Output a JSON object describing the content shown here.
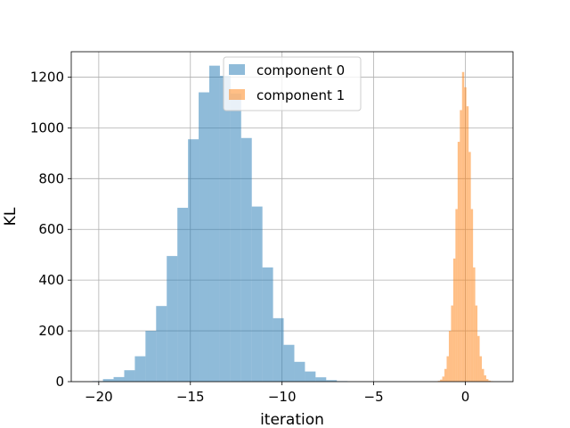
{
  "chart_data": {
    "type": "histogram",
    "xlabel": "iteration",
    "ylabel": "KL",
    "xlim": [
      -21.5,
      2.6
    ],
    "ylim": [
      0,
      1300
    ],
    "x_ticks": [
      -20,
      -15,
      -10,
      -5,
      0
    ],
    "x_tick_labels": [
      "−20",
      "−15",
      "−10",
      "−5",
      "0"
    ],
    "y_ticks": [
      0,
      200,
      400,
      600,
      800,
      1000,
      1200
    ],
    "y_tick_labels": [
      "0",
      "200",
      "400",
      "600",
      "800",
      "1000",
      "1200"
    ],
    "grid": true,
    "legend_position": "top-center",
    "series": [
      {
        "name": "component 0",
        "color": "#1f77b4",
        "opacity": 0.5,
        "bins": [
          {
            "x0": -20.35,
            "x1": -19.77,
            "value": 2
          },
          {
            "x0": -19.77,
            "x1": -19.19,
            "value": 10
          },
          {
            "x0": -19.19,
            "x1": -18.61,
            "value": 18
          },
          {
            "x0": -18.61,
            "x1": -18.03,
            "value": 45
          },
          {
            "x0": -18.03,
            "x1": -17.45,
            "value": 100
          },
          {
            "x0": -17.45,
            "x1": -16.87,
            "value": 200
          },
          {
            "x0": -16.87,
            "x1": -16.29,
            "value": 298
          },
          {
            "x0": -16.29,
            "x1": -15.71,
            "value": 495
          },
          {
            "x0": -15.71,
            "x1": -15.13,
            "value": 685
          },
          {
            "x0": -15.13,
            "x1": -14.55,
            "value": 955
          },
          {
            "x0": -14.55,
            "x1": -13.97,
            "value": 1140
          },
          {
            "x0": -13.97,
            "x1": -13.39,
            "value": 1245
          },
          {
            "x0": -13.39,
            "x1": -12.81,
            "value": 1205
          },
          {
            "x0": -12.81,
            "x1": -12.23,
            "value": 1135
          },
          {
            "x0": -12.23,
            "x1": -11.65,
            "value": 960
          },
          {
            "x0": -11.65,
            "x1": -11.07,
            "value": 690
          },
          {
            "x0": -11.07,
            "x1": -10.49,
            "value": 450
          },
          {
            "x0": -10.49,
            "x1": -9.91,
            "value": 250
          },
          {
            "x0": -9.91,
            "x1": -9.33,
            "value": 145
          },
          {
            "x0": -9.33,
            "x1": -8.75,
            "value": 78
          },
          {
            "x0": -8.75,
            "x1": -8.17,
            "value": 40
          },
          {
            "x0": -8.17,
            "x1": -7.59,
            "value": 17
          },
          {
            "x0": -7.59,
            "x1": -7.01,
            "value": 6
          },
          {
            "x0": -7.01,
            "x1": -6.43,
            "value": 2
          }
        ]
      },
      {
        "name": "component 1",
        "color": "#ff7f0e",
        "opacity": 0.5,
        "bins": [
          {
            "x0": -1.5,
            "x1": -1.38,
            "value": 3
          },
          {
            "x0": -1.38,
            "x1": -1.26,
            "value": 8
          },
          {
            "x0": -1.26,
            "x1": -1.14,
            "value": 20
          },
          {
            "x0": -1.14,
            "x1": -1.02,
            "value": 50
          },
          {
            "x0": -1.02,
            "x1": -0.9,
            "value": 100
          },
          {
            "x0": -0.9,
            "x1": -0.78,
            "value": 200
          },
          {
            "x0": -0.78,
            "x1": -0.66,
            "value": 300
          },
          {
            "x0": -0.66,
            "x1": -0.54,
            "value": 485
          },
          {
            "x0": -0.54,
            "x1": -0.42,
            "value": 680
          },
          {
            "x0": -0.42,
            "x1": -0.3,
            "value": 945
          },
          {
            "x0": -0.3,
            "x1": -0.18,
            "value": 1070
          },
          {
            "x0": -0.18,
            "x1": -0.06,
            "value": 1220
          },
          {
            "x0": -0.06,
            "x1": 0.06,
            "value": 1160
          },
          {
            "x0": 0.06,
            "x1": 0.18,
            "value": 1085
          },
          {
            "x0": 0.18,
            "x1": 0.3,
            "value": 905
          },
          {
            "x0": 0.3,
            "x1": 0.42,
            "value": 680
          },
          {
            "x0": 0.42,
            "x1": 0.54,
            "value": 450
          },
          {
            "x0": 0.54,
            "x1": 0.66,
            "value": 300
          },
          {
            "x0": 0.66,
            "x1": 0.78,
            "value": 180
          },
          {
            "x0": 0.78,
            "x1": 0.9,
            "value": 100
          },
          {
            "x0": 0.9,
            "x1": 1.02,
            "value": 50
          },
          {
            "x0": 1.02,
            "x1": 1.14,
            "value": 25
          },
          {
            "x0": 1.14,
            "x1": 1.26,
            "value": 10
          },
          {
            "x0": 1.26,
            "x1": 1.38,
            "value": 4
          },
          {
            "x0": 1.38,
            "x1": 1.5,
            "value": 2
          }
        ]
      }
    ]
  }
}
